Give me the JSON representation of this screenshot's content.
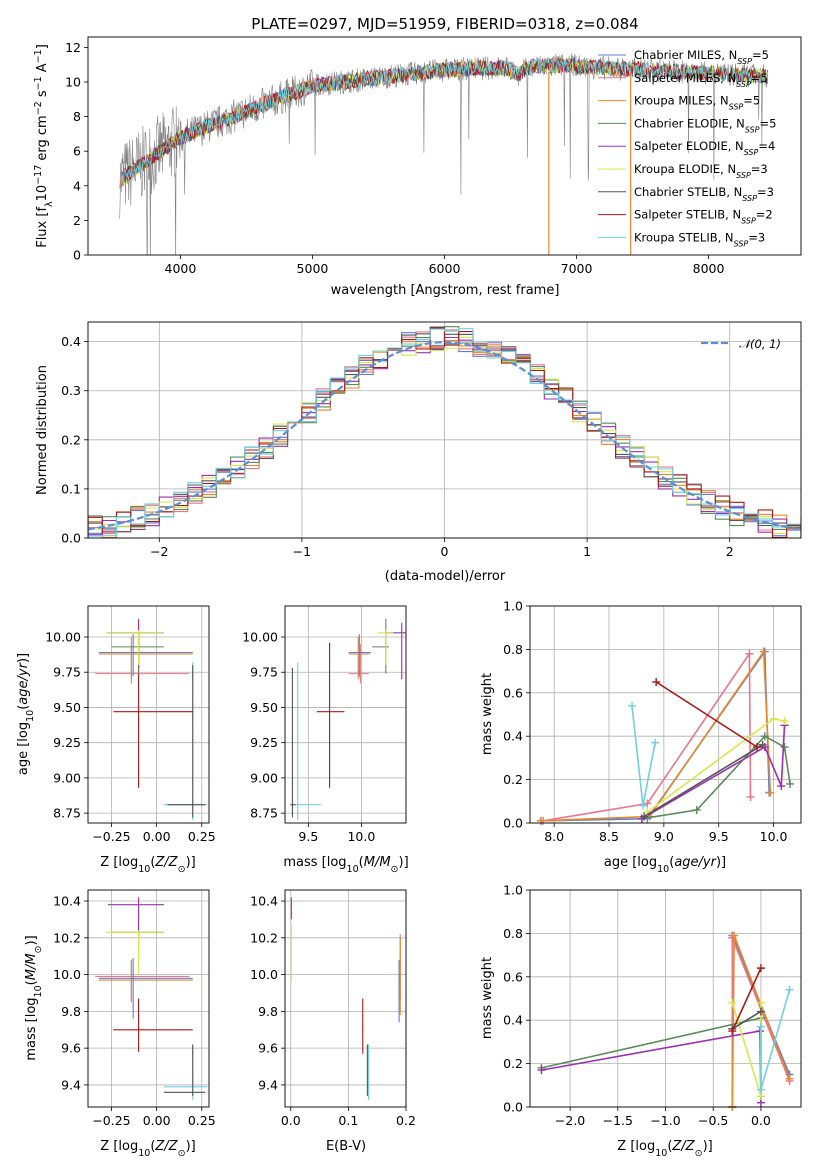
{
  "title": "PLATE=0297, MJD=51959, FIBERID=0318, z=0.084",
  "colors": {
    "Chabrier MILES": "#5b7fd6",
    "Salpeter MILES": "#e8778a",
    "Kroupa MILES": "#e8862a",
    "Chabrier ELODIE": "#5a8a5a",
    "Salpeter ELODIE": "#9b30b0",
    "Kroupa ELODIE": "#d8e84a",
    "Chabrier STELIB": "#555555",
    "Salpeter STELIB": "#a81818",
    "Kroupa STELIB": "#70d0dc",
    "normal": "#5b8fd6",
    "data": "#808080"
  },
  "chart_data": [
    {
      "id": "spectrum",
      "type": "line",
      "xlabel": "wavelength [Angstrom, rest frame]",
      "ylabel_pre": "Flux [f",
      "ylabel_sub": "λ",
      "ylabel_post": "10",
      "ylabel_exp1": "−17",
      "ylabel_mid": " erg cm",
      "ylabel_exp2": "−2",
      "ylabel_mid2": " s",
      "ylabel_exp3": "−1",
      "ylabel_end": " A",
      "ylabel_exp4": "−1",
      "ylabel_close": "]",
      "xlim": [
        3300,
        8700
      ],
      "ylim": [
        0,
        12.6
      ],
      "xticks": [
        "4000",
        "5000",
        "6000",
        "7000",
        "8000"
      ],
      "yticks": [
        "0",
        "2",
        "4",
        "6",
        "8",
        "10",
        "12"
      ],
      "legend": [
        {
          "name": "Chabrier MILES",
          "n": "5"
        },
        {
          "name": "Salpeter MILES",
          "n": "5"
        },
        {
          "name": "Kroupa MILES",
          "n": "5"
        },
        {
          "name": "Chabrier ELODIE",
          "n": "5"
        },
        {
          "name": "Salpeter ELODIE",
          "n": "4"
        },
        {
          "name": "Kroupa ELODIE",
          "n": "3"
        },
        {
          "name": "Chabrier STELIB",
          "n": "3"
        },
        {
          "name": "Salpeter STELIB",
          "n": "2"
        },
        {
          "name": "Kroupa STELIB",
          "n": "3"
        }
      ],
      "legend_sub": "SSP",
      "legend_mid": ", N"
    },
    {
      "id": "hist",
      "type": "area",
      "xlabel": "(data-model)/error",
      "ylabel": "Normed distribution",
      "xlim": [
        -2.5,
        2.5
      ],
      "ylim": [
        0,
        0.44
      ],
      "xticks": [
        "−2",
        "−1",
        "0",
        "1",
        "2"
      ],
      "yticks": [
        "0.0",
        "0.1",
        "0.2",
        "0.3",
        "0.4"
      ],
      "legend": "𝒩(0, 1)"
    },
    {
      "id": "z_age",
      "type": "scatter",
      "xlabel": "Z [log10(Z/Z⊙)]",
      "ylabel": "age  [log10(age/yr)]",
      "xlim": [
        -0.38,
        0.29
      ],
      "ylim": [
        8.68,
        10.22
      ],
      "xticks": [
        "−0.25",
        "0.00",
        "0.25"
      ],
      "yticks": [
        "8.75",
        "9.00",
        "9.25",
        "9.50",
        "9.75",
        "10.00"
      ]
    },
    {
      "id": "mass_age",
      "type": "scatter",
      "xlabel": "mass [log10(M/M⊙)]",
      "xlim": [
        9.28,
        10.42
      ],
      "ylim": [
        8.68,
        10.22
      ],
      "xticks": [
        "9.5",
        "10.0"
      ],
      "yticks": [
        "8.75",
        "9.00",
        "9.25",
        "9.50",
        "9.75",
        "10.00"
      ]
    },
    {
      "id": "age_weight",
      "type": "line",
      "xlabel": "age  [log10(age/yr)]",
      "ylabel": "mass weight",
      "xlim": [
        7.78,
        10.25
      ],
      "ylim": [
        0,
        1.0
      ],
      "xticks": [
        "8.0",
        "8.5",
        "9.0",
        "9.5",
        "10.0"
      ],
      "yticks": [
        "0.0",
        "0.2",
        "0.4",
        "0.6",
        "0.8",
        "1.0"
      ]
    },
    {
      "id": "z_mass",
      "type": "scatter",
      "xlabel": "Z [log10(Z/Z⊙)]",
      "ylabel": "mass [log10(M/M⊙)]",
      "xlim": [
        -0.38,
        0.29
      ],
      "ylim": [
        9.28,
        10.46
      ],
      "xticks": [
        "−0.25",
        "0.00",
        "0.25"
      ],
      "yticks": [
        "9.4",
        "9.6",
        "9.8",
        "10.0",
        "10.2",
        "10.4"
      ]
    },
    {
      "id": "ebv_mass",
      "type": "scatter",
      "xlabel": "E(B-V)",
      "xlim": [
        -0.01,
        0.2
      ],
      "ylim": [
        9.28,
        10.46
      ],
      "xticks": [
        "0.0",
        "0.1",
        "0.2"
      ],
      "yticks": [
        "9.4",
        "9.6",
        "9.8",
        "10.0",
        "10.2",
        "10.4"
      ]
    },
    {
      "id": "z_weight",
      "type": "line",
      "xlabel": "Z [log10(Z/Z⊙)]",
      "ylabel": "mass weight",
      "xlim": [
        -2.42,
        0.42
      ],
      "ylim": [
        0,
        1.0
      ],
      "xticks": [
        "−2.0",
        "−1.5",
        "−1.0",
        "−0.5",
        "0.0"
      ],
      "yticks": [
        "0.0",
        "0.2",
        "0.4",
        "0.6",
        "0.8",
        "1.0"
      ]
    }
  ]
}
